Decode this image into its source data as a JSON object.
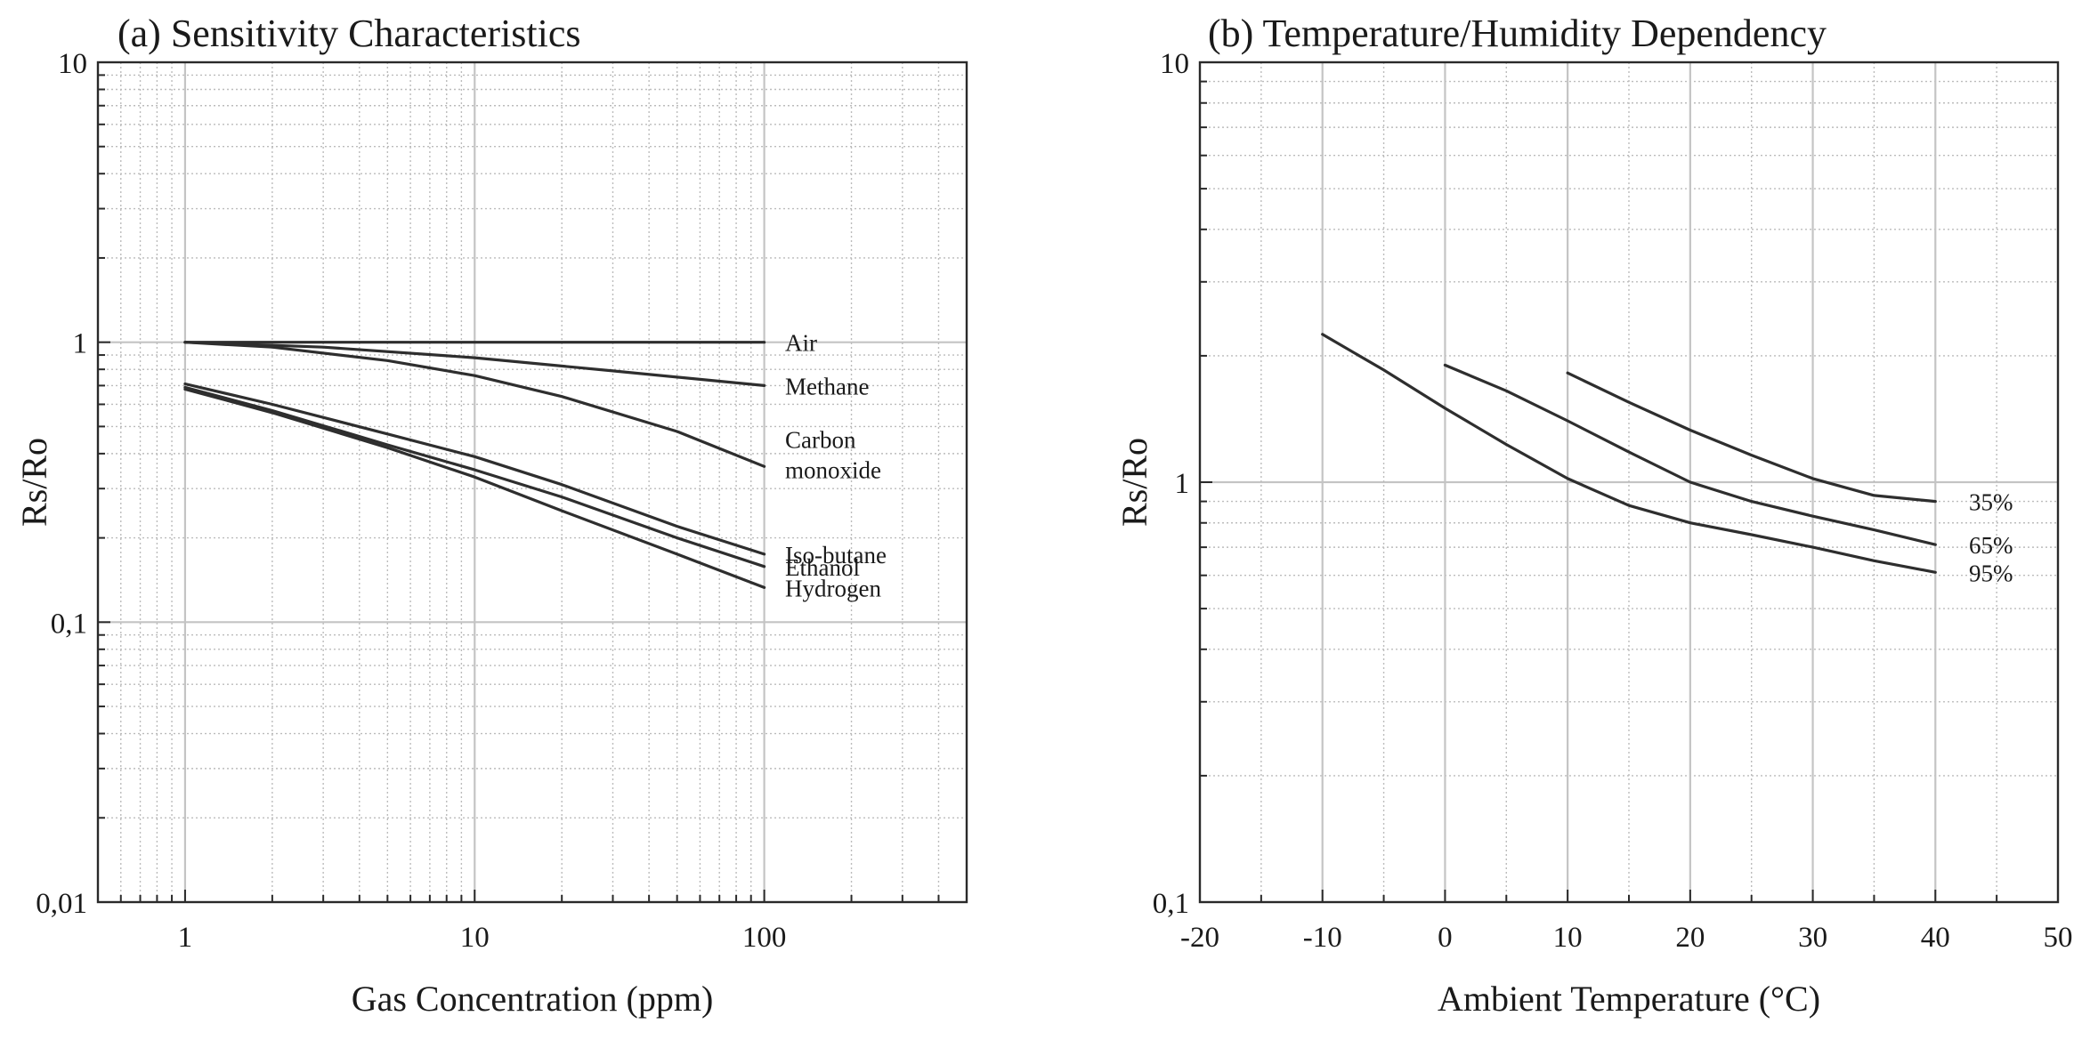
{
  "chart_data": [
    {
      "type": "line",
      "title": "(a) Sensitivity Characteristics",
      "xlabel": "Gas Concentration (ppm)",
      "ylabel": "Rs/Ro",
      "xscale": "log",
      "yscale": "log",
      "xlim": [
        0.5,
        500
      ],
      "ylim": [
        0.01,
        10
      ],
      "grid": true,
      "x_tick_labels": [
        {
          "value": 1,
          "label": "1"
        },
        {
          "value": 10,
          "label": "10"
        },
        {
          "value": 100,
          "label": "100"
        }
      ],
      "y_tick_labels": [
        {
          "value": 10,
          "label": "10"
        },
        {
          "value": 1,
          "label": "1"
        },
        {
          "value": 0.1,
          "label": "0,1"
        },
        {
          "value": 0.01,
          "label": "0,01"
        }
      ],
      "series": [
        {
          "name": "Air",
          "label_lines": [
            "Air"
          ],
          "x": [
            1,
            3,
            10,
            30,
            100
          ],
          "y": [
            1.0,
            1.0,
            1.0,
            1.0,
            1.0
          ]
        },
        {
          "name": "Methane",
          "label_lines": [
            "Methane"
          ],
          "x": [
            1,
            3,
            10,
            30,
            100
          ],
          "y": [
            1.0,
            0.96,
            0.88,
            0.79,
            0.7
          ]
        },
        {
          "name": "Carbon monoxide",
          "label_lines": [
            "Carbon",
            "monoxide"
          ],
          "x": [
            1,
            2,
            5,
            10,
            20,
            50,
            100
          ],
          "y": [
            1.0,
            0.96,
            0.86,
            0.76,
            0.64,
            0.48,
            0.36
          ]
        },
        {
          "name": "Iso-butane",
          "label_lines": [
            "Iso-butane"
          ],
          "x": [
            1,
            2,
            5,
            10,
            20,
            50,
            100
          ],
          "y": [
            0.71,
            0.6,
            0.47,
            0.39,
            0.31,
            0.22,
            0.175
          ]
        },
        {
          "name": "Ethanol",
          "label_lines": [
            "Ethanol"
          ],
          "x": [
            1,
            2,
            5,
            10,
            20,
            50,
            100
          ],
          "y": [
            0.69,
            0.57,
            0.43,
            0.35,
            0.28,
            0.2,
            0.158
          ]
        },
        {
          "name": "Hydrogen",
          "label_lines": [
            "Hydrogen"
          ],
          "x": [
            1,
            2,
            5,
            10,
            20,
            50,
            100
          ],
          "y": [
            0.68,
            0.56,
            0.42,
            0.33,
            0.25,
            0.175,
            0.133
          ]
        }
      ]
    },
    {
      "type": "line",
      "title": "(b) Temperature/Humidity Dependency",
      "xlabel": "Ambient Temperature (°C)",
      "ylabel": "Rs/Ro",
      "xscale": "linear",
      "yscale": "log",
      "xlim": [
        -20,
        50
      ],
      "ylim": [
        0.1,
        10
      ],
      "grid": true,
      "x_tick_labels": [
        {
          "value": -20,
          "label": "-20"
        },
        {
          "value": -10,
          "label": "-10"
        },
        {
          "value": 0,
          "label": "0"
        },
        {
          "value": 10,
          "label": "10"
        },
        {
          "value": 20,
          "label": "20"
        },
        {
          "value": 30,
          "label": "30"
        },
        {
          "value": 40,
          "label": "40"
        },
        {
          "value": 50,
          "label": "50"
        }
      ],
      "y_tick_labels": [
        {
          "value": 10,
          "label": "10"
        },
        {
          "value": 1,
          "label": "1"
        },
        {
          "value": 0.1,
          "label": "0,1"
        }
      ],
      "series": [
        {
          "name": "35%",
          "label_lines": [
            "35%"
          ],
          "x": [
            10,
            15,
            20,
            25,
            30,
            35,
            40
          ],
          "y": [
            1.82,
            1.55,
            1.33,
            1.16,
            1.02,
            0.93,
            0.9
          ]
        },
        {
          "name": "65%",
          "label_lines": [
            "65%"
          ],
          "x": [
            0,
            5,
            10,
            15,
            20,
            25,
            30,
            35,
            40
          ],
          "y": [
            1.9,
            1.65,
            1.4,
            1.18,
            1.0,
            0.9,
            0.83,
            0.77,
            0.71
          ]
        },
        {
          "name": "95%",
          "label_lines": [
            "95%"
          ],
          "x": [
            -10,
            -5,
            0,
            5,
            10,
            15,
            20,
            25,
            30,
            35,
            40
          ],
          "y": [
            2.25,
            1.85,
            1.5,
            1.23,
            1.02,
            0.88,
            0.8,
            0.75,
            0.7,
            0.65,
            0.61
          ]
        }
      ]
    }
  ]
}
